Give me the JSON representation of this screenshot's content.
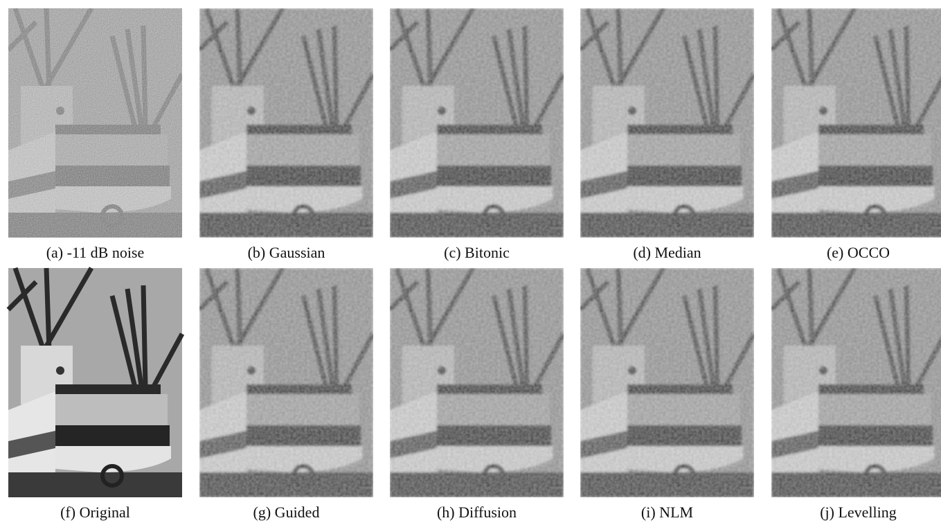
{
  "captions": [
    "(a) -11 dB noise",
    "(b) Gaussian",
    "(c) Bitonic",
    "(d) Median",
    "(e) OCCO",
    "(f) Original",
    "(g) Guided",
    "(h) Diffusion",
    "(i) NLM",
    "(j) Levelling"
  ]
}
